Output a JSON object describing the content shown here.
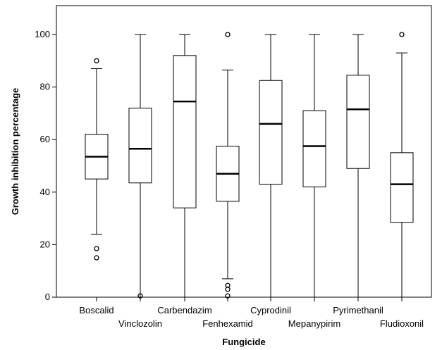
{
  "chart_data": {
    "type": "box",
    "xlabel": "Fungicide",
    "ylabel": "Growth inhibition percentage",
    "ylim": [
      0,
      110
    ],
    "yticks": [
      0,
      20,
      40,
      60,
      80,
      100
    ],
    "grid": false,
    "categories": [
      "Boscalid",
      "Vinclozolin",
      "Carbendazim",
      "Fenhexamid",
      "Cyprodinil",
      "Mepanypirim",
      "Pyrimethanil",
      "Fludioxonil"
    ],
    "boxes": [
      {
        "category": "Boscalid",
        "whisker_low": 24,
        "q1": 45,
        "median": 53.5,
        "q3": 62,
        "whisker_high": 87,
        "outliers": [
          90,
          18.5,
          15
        ]
      },
      {
        "category": "Vinclozolin",
        "whisker_low": 0,
        "q1": 43.5,
        "median": 56.5,
        "q3": 72,
        "whisker_high": 100,
        "outliers": [
          0.5
        ]
      },
      {
        "category": "Carbendazim",
        "whisker_low": 0,
        "q1": 34,
        "median": 74.5,
        "q3": 92,
        "whisker_high": 100,
        "outliers": []
      },
      {
        "category": "Fenhexamid",
        "whisker_low": 7,
        "q1": 36.5,
        "median": 47,
        "q3": 57.5,
        "whisker_high": 86.5,
        "outliers": [
          100,
          4.5,
          3,
          0.5
        ]
      },
      {
        "category": "Cyprodinil",
        "whisker_low": 0,
        "q1": 43,
        "median": 66,
        "q3": 82.5,
        "whisker_high": 100,
        "outliers": []
      },
      {
        "category": "Mepanypirim",
        "whisker_low": 0,
        "q1": 42,
        "median": 57.5,
        "q3": 71,
        "whisker_high": 100,
        "outliers": []
      },
      {
        "category": "Pyrimethanil",
        "whisker_low": 0,
        "q1": 49,
        "median": 71.5,
        "q3": 84.5,
        "whisker_high": 100,
        "outliers": []
      },
      {
        "category": "Fludioxonil",
        "whisker_low": 0,
        "q1": 28.5,
        "median": 43,
        "q3": 55,
        "whisker_high": 93,
        "outliers": [
          100
        ]
      }
    ]
  }
}
